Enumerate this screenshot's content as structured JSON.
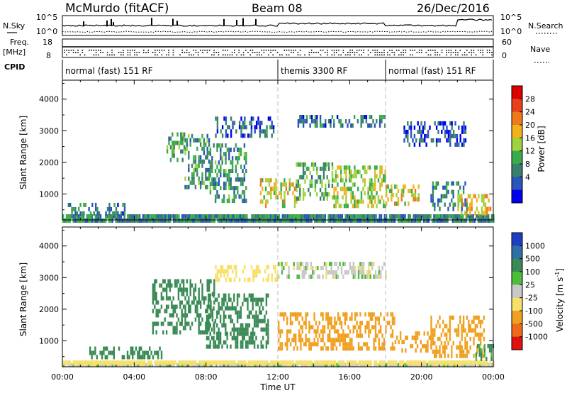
{
  "header": {
    "station": "McMurdo (fitACF)",
    "beam": "Beam 08",
    "date": "26/Dec/2016"
  },
  "top_panels": {
    "nsky_label": "N.Sky",
    "nsearch_label": "N.Search",
    "left_ticks": [
      "10^5",
      "10^0"
    ],
    "right_ticks": [
      "10^5",
      "10^0"
    ],
    "freq_label": "Freq.",
    "freq_unit": "[MHz]",
    "freq_ticks": [
      "18",
      "8"
    ],
    "nave_label": "Nave",
    "nave_ticks": [
      "60",
      "0"
    ],
    "cpid_label": "CPID",
    "cpid_modes": [
      {
        "name": "normal (fast) 151 RF",
        "start_hour": 0,
        "end_hour": 12
      },
      {
        "name": "themis 3300 RF",
        "start_hour": 12,
        "end_hour": 18
      },
      {
        "name": "normal (fast) 151 RF",
        "start_hour": 18,
        "end_hour": 24
      }
    ]
  },
  "x_axis": {
    "label": "Time UT",
    "ticks": [
      "00:00",
      "04:00",
      "08:00",
      "12:00",
      "16:00",
      "20:00",
      "00:00"
    ],
    "range_hours": [
      0,
      24
    ]
  },
  "chart_data": [
    {
      "type": "heatmap",
      "panel": "power",
      "ylabel": "Slant Range [km]",
      "ylim": [
        180,
        4600
      ],
      "yticks": [
        1000,
        2000,
        3000,
        4000
      ],
      "xlim": [
        0,
        24
      ],
      "colorbar": {
        "label": "Power [dB]",
        "ticks": [
          "4",
          "8",
          "12",
          "16",
          "20",
          "24",
          "28"
        ],
        "colors": [
          "#0000ee",
          "#2a55bb",
          "#3a7f6e",
          "#3aab4a",
          "#9fd23f",
          "#f3b21c",
          "#ee7a1c",
          "#e8401a",
          "#dd0000"
        ]
      },
      "regions": [
        {
          "t0": 0.0,
          "t1": 24.0,
          "r0": 200,
          "r1": 360,
          "value": 10
        },
        {
          "t0": 0.3,
          "t1": 3.5,
          "r0": 380,
          "r1": 720,
          "value": 9
        },
        {
          "t0": 5.8,
          "t1": 6.8,
          "r0": 1900,
          "r1": 2950,
          "value": 13
        },
        {
          "t0": 6.8,
          "t1": 8.2,
          "r0": 1200,
          "r1": 2900,
          "value": 12
        },
        {
          "t0": 8.2,
          "t1": 10.2,
          "r0": 800,
          "r1": 2600,
          "value": 11
        },
        {
          "t0": 8.5,
          "t1": 11.8,
          "r0": 2850,
          "r1": 3450,
          "value": 8
        },
        {
          "t0": 11.0,
          "t1": 13.0,
          "r0": 650,
          "r1": 1500,
          "value": 20
        },
        {
          "t0": 13.0,
          "t1": 18.0,
          "r0": 3100,
          "r1": 3500,
          "value": 8
        },
        {
          "t0": 13.0,
          "t1": 15.0,
          "r0": 900,
          "r1": 2000,
          "value": 13
        },
        {
          "t0": 15.0,
          "t1": 18.0,
          "r0": 650,
          "r1": 1900,
          "value": 18
        },
        {
          "t0": 18.0,
          "t1": 19.8,
          "r0": 650,
          "r1": 1300,
          "value": 20
        },
        {
          "t0": 19.0,
          "t1": 22.5,
          "r0": 2600,
          "r1": 3300,
          "value": 6
        },
        {
          "t0": 20.5,
          "t1": 22.5,
          "r0": 500,
          "r1": 1400,
          "value": 10
        },
        {
          "t0": 22.0,
          "t1": 23.8,
          "r0": 400,
          "r1": 1000,
          "value": 22
        }
      ]
    },
    {
      "type": "heatmap",
      "panel": "velocity",
      "ylabel": "Slant Range [km]",
      "ylim": [
        180,
        4600
      ],
      "yticks": [
        1000,
        2000,
        3000,
        4000
      ],
      "xlim": [
        0,
        24
      ],
      "colorbar": {
        "label": "Velocity [m s^-1]",
        "ticks": [
          "1000",
          "500",
          "100",
          "25",
          "-25",
          "-100",
          "-500",
          "-1000"
        ],
        "colors": [
          "#1c3fc2",
          "#2f6fa8",
          "#3a8a55",
          "#4dbd3c",
          "#c8c8c8",
          "#f7e06a",
          "#f0a020",
          "#ee6a18",
          "#e01010"
        ]
      },
      "regions": [
        {
          "t0": 0.0,
          "t1": 24.0,
          "r0": 200,
          "r1": 300,
          "value": 0
        },
        {
          "t0": 0.0,
          "t1": 24.0,
          "r0": 300,
          "r1": 380,
          "value": -60
        },
        {
          "t0": 1.5,
          "t1": 5.5,
          "r0": 550,
          "r1": 820,
          "value": 200
        },
        {
          "t0": 5.0,
          "t1": 8.5,
          "r0": 1200,
          "r1": 2950,
          "value": 300
        },
        {
          "t0": 8.0,
          "t1": 11.5,
          "r0": 800,
          "r1": 2500,
          "value": 250
        },
        {
          "t0": 8.5,
          "t1": 12.0,
          "r0": 2900,
          "r1": 3400,
          "value": -60
        },
        {
          "t0": 12.0,
          "t1": 18.0,
          "r0": 3000,
          "r1": 3500,
          "value": 0
        },
        {
          "t0": 12.0,
          "t1": 18.5,
          "r0": 700,
          "r1": 1900,
          "value": -250
        },
        {
          "t0": 18.5,
          "t1": 20.5,
          "r0": 700,
          "r1": 1300,
          "value": -250
        },
        {
          "t0": 20.5,
          "t1": 23.5,
          "r0": 500,
          "r1": 1800,
          "value": -220
        },
        {
          "t0": 23.0,
          "t1": 24.0,
          "r0": 400,
          "r1": 900,
          "value": 120
        }
      ]
    }
  ]
}
